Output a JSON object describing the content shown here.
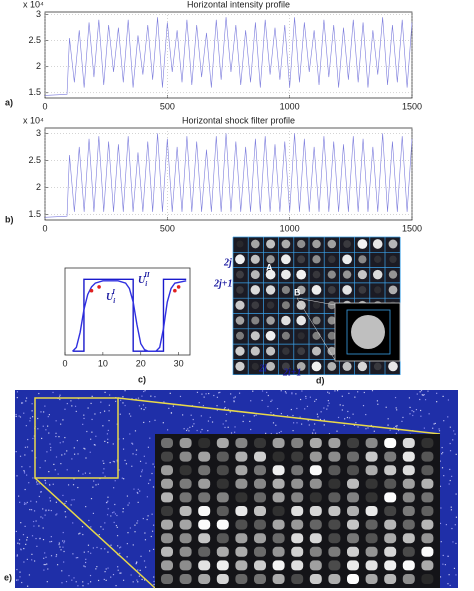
{
  "chart_data": [
    {
      "type": "line",
      "title": "Horizontal intensity profile",
      "scale_label": "x 10⁴",
      "panel_label": "a)",
      "x": [
        0,
        90,
        100,
        120,
        140,
        160,
        180,
        200,
        220,
        240,
        260,
        280,
        300,
        320,
        340,
        360,
        380,
        400,
        420,
        440,
        460,
        480,
        500,
        520,
        540,
        560,
        580,
        600,
        620,
        640,
        660,
        680,
        700,
        720,
        740,
        760,
        780,
        800,
        820,
        840,
        860,
        880,
        900,
        920,
        940,
        960,
        980,
        1000,
        1020,
        1040,
        1060,
        1080,
        1100,
        1120,
        1140,
        1160,
        1180,
        1200,
        1220,
        1240,
        1260,
        1280,
        1300,
        1320,
        1340,
        1360,
        1380,
        1400,
        1420,
        1440,
        1460,
        1480,
        1500
      ],
      "series": [
        {
          "color": "#7b7bdc",
          "values": [
            1.45,
            1.47,
            2.55,
            1.7,
            2.7,
            1.6,
            2.85,
            1.8,
            2.9,
            1.65,
            2.8,
            1.9,
            2.75,
            1.7,
            2.9,
            1.6,
            2.6,
            1.85,
            2.8,
            1.75,
            2.95,
            1.6,
            2.85,
            1.9,
            2.7,
            1.7,
            2.9,
            1.65,
            2.8,
            1.8,
            2.65,
            1.6,
            2.9,
            1.75,
            2.95,
            1.9,
            2.8,
            1.65,
            2.7,
            1.7,
            2.85,
            1.6,
            2.9,
            1.85,
            2.75,
            1.75,
            2.8,
            1.6,
            2.95,
            1.7,
            2.85,
            1.9,
            2.7,
            1.65,
            2.9,
            1.8,
            2.8,
            1.6,
            2.75,
            1.75,
            2.9,
            1.7,
            2.85,
            1.6,
            2.7,
            1.85,
            2.95,
            1.65,
            2.8,
            1.7,
            2.9,
            1.6,
            2.85
          ]
        }
      ],
      "xlim": [
        0,
        1500
      ],
      "xticks": [
        0,
        500,
        1000,
        1500
      ],
      "ylim": [
        1.4,
        3.05
      ],
      "yticks": [
        1.5,
        2,
        2.5,
        3
      ],
      "grid": true
    },
    {
      "type": "line",
      "title": "Horizontal shock filter profile",
      "scale_label": "x 10⁴",
      "panel_label": "b)",
      "x": [
        0,
        90,
        100,
        120,
        140,
        160,
        180,
        200,
        220,
        240,
        260,
        280,
        300,
        320,
        340,
        360,
        380,
        400,
        420,
        440,
        460,
        480,
        500,
        520,
        540,
        560,
        580,
        600,
        620,
        640,
        660,
        680,
        700,
        720,
        740,
        760,
        780,
        800,
        820,
        840,
        860,
        880,
        900,
        920,
        940,
        960,
        980,
        1000,
        1020,
        1040,
        1060,
        1080,
        1100,
        1120,
        1140,
        1160,
        1180,
        1200,
        1220,
        1240,
        1260,
        1280,
        1300,
        1320,
        1340,
        1360,
        1380,
        1400,
        1420,
        1440,
        1460,
        1480,
        1500
      ],
      "series": [
        {
          "color": "#7b7bdc",
          "values": [
            1.45,
            1.47,
            2.6,
            1.55,
            2.75,
            1.55,
            2.9,
            1.55,
            2.95,
            1.55,
            2.85,
            1.55,
            2.8,
            1.55,
            2.95,
            1.55,
            2.65,
            1.55,
            2.85,
            1.55,
            3.0,
            1.55,
            2.9,
            1.55,
            2.75,
            1.55,
            2.95,
            1.55,
            2.85,
            1.55,
            2.7,
            1.55,
            2.95,
            1.55,
            3.0,
            1.55,
            2.85,
            1.55,
            2.75,
            1.55,
            2.9,
            1.55,
            2.95,
            1.55,
            2.8,
            1.55,
            2.85,
            1.55,
            3.0,
            1.55,
            2.9,
            1.55,
            2.75,
            1.55,
            2.95,
            1.55,
            2.85,
            1.55,
            2.8,
            1.55,
            2.95,
            1.55,
            2.9,
            1.55,
            2.75,
            1.55,
            3.0,
            1.55,
            2.85,
            1.55,
            2.95,
            1.55,
            2.9
          ]
        }
      ],
      "xlim": [
        0,
        1500
      ],
      "xticks": [
        0,
        500,
        1000,
        1500
      ],
      "ylim": [
        1.4,
        3.1
      ],
      "yticks": [
        1.5,
        2,
        2.5,
        3
      ],
      "grid": true
    },
    {
      "type": "line",
      "panel_label": "c)",
      "series": [
        {
          "color": "#1a1acc",
          "x": [
            2,
            5,
            5,
            18,
            18,
            26,
            26,
            32
          ],
          "values": [
            0.05,
            0.05,
            1,
            1,
            0.05,
            0.05,
            1,
            1
          ]
        },
        {
          "color": "#3030e0",
          "x": [
            2,
            3,
            4,
            5,
            6,
            7,
            8,
            10,
            14,
            16,
            17,
            18,
            19,
            20,
            21,
            22,
            24,
            25,
            26,
            27,
            28,
            29,
            32
          ],
          "values": [
            0.05,
            0.1,
            0.3,
            0.6,
            0.8,
            0.9,
            0.95,
            0.98,
            0.98,
            0.95,
            0.88,
            0.7,
            0.4,
            0.15,
            0.07,
            0.05,
            0.05,
            0.1,
            0.35,
            0.7,
            0.88,
            0.95,
            0.98
          ]
        },
        {
          "color": "#e02020",
          "style": "markers",
          "x": [
            7,
            9,
            29,
            30
          ],
          "values": [
            0.85,
            0.9,
            0.85,
            0.9
          ]
        }
      ],
      "annotations": [
        {
          "base": "U",
          "sub": "i",
          "sup": "I"
        },
        {
          "base": "U",
          "sub": "i",
          "sup": "II"
        }
      ],
      "xlim": [
        0,
        33
      ],
      "xticks": [
        0,
        10,
        20,
        30
      ],
      "ylim": [
        0,
        1.15
      ],
      "grid": false
    }
  ],
  "panel_d": {
    "labels": [
      "2j",
      "2j+1",
      "A",
      "B",
      "2i",
      "2i+1"
    ],
    "panel_label": "d)"
  },
  "panel_e": {
    "panel_label": "e)"
  }
}
